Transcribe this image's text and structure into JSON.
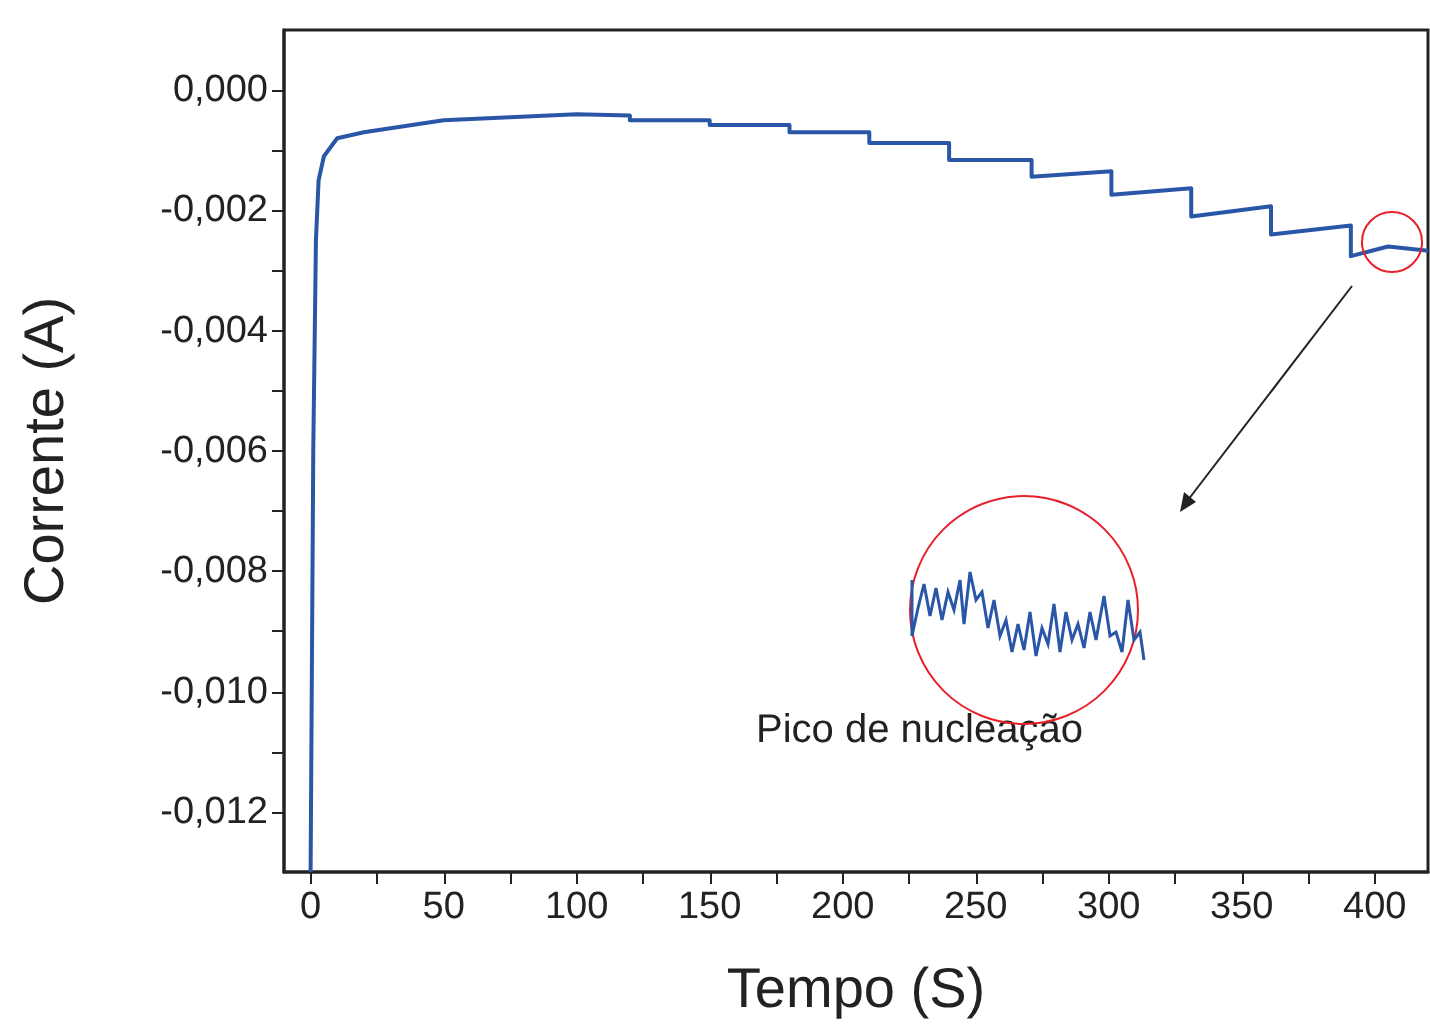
{
  "chart_data": {
    "type": "line",
    "xlabel": "Tempo (S)",
    "ylabel": "Corrente (A)",
    "annotations": [
      "Pico de nucleação"
    ],
    "xlim": [
      -10,
      420
    ],
    "xticks": [
      0,
      50,
      100,
      150,
      200,
      250,
      300,
      350,
      400
    ],
    "ylim": [
      -0.013,
      0.001
    ],
    "yticks": [
      {
        "value": 0,
        "label": "0,000"
      },
      {
        "value": -0.002,
        "label": "-0,002"
      },
      {
        "value": -0.004,
        "label": "-0,004"
      },
      {
        "value": -0.006,
        "label": "-0,006"
      },
      {
        "value": -0.008,
        "label": "-0,008"
      },
      {
        "value": -0.01,
        "label": "-0,010"
      },
      {
        "value": -0.012,
        "label": "-0,012"
      }
    ],
    "grid": false,
    "marker": "none",
    "line_style": "solid",
    "series": [
      {
        "color": "#2a56a8",
        "x": [
          0,
          1,
          2,
          3,
          5,
          10,
          20,
          35,
          50,
          75,
          100,
          120,
          120,
          150,
          150,
          180,
          180,
          210,
          210,
          240,
          240,
          271,
          271,
          301,
          301,
          331,
          331,
          361,
          361,
          391,
          391,
          405,
          420
        ],
        "values": [
          -0.013,
          -0.006,
          -0.0025,
          -0.0015,
          -0.0011,
          -0.0008,
          -0.0007,
          -0.0006,
          -0.0005,
          -0.00045,
          -0.0004,
          -0.00042,
          -0.0005,
          -0.0005,
          -0.00058,
          -0.00058,
          -0.0007,
          -0.0007,
          -0.00088,
          -0.00088,
          -0.00116,
          -0.00116,
          -0.00144,
          -0.00135,
          -0.00174,
          -0.00163,
          -0.0021,
          -0.00193,
          -0.0024,
          -0.00225,
          -0.00276,
          -0.0026,
          -0.00267
        ]
      }
    ]
  }
}
